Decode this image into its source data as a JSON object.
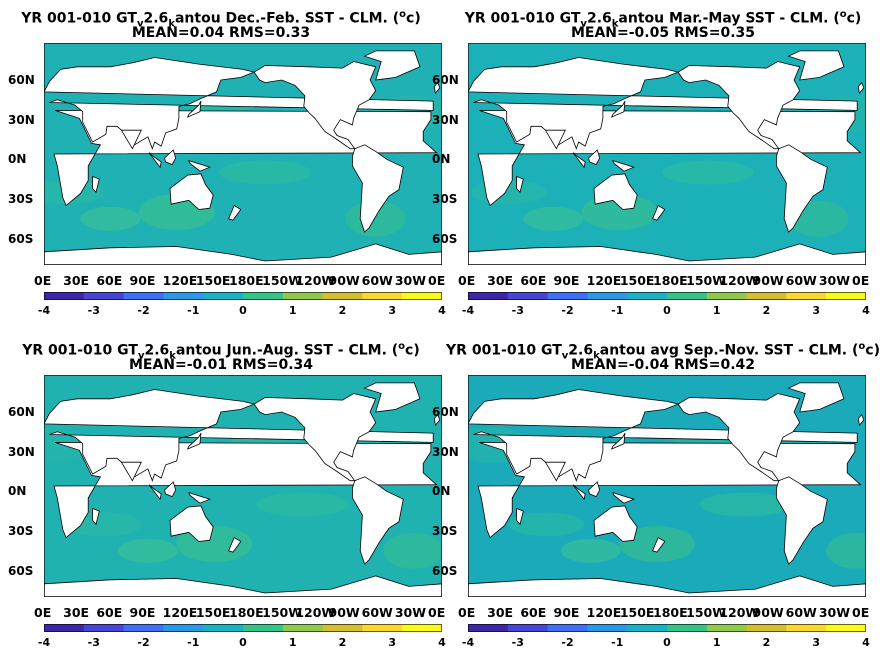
{
  "colorbar": {
    "range": [
      -4,
      4
    ],
    "ticks": [
      "-4",
      "-3",
      "-2",
      "-1",
      "0",
      "1",
      "2",
      "3",
      "4"
    ],
    "colors": [
      "#3e26a8",
      "#4745d4",
      "#3f6ff5",
      "#2c99e6",
      "#16b3c6",
      "#35c387",
      "#8ec94b",
      "#d6bf2e",
      "#fbd92c",
      "#f9fb15"
    ]
  },
  "lat_labels": [
    "60N",
    "30N",
    "0N",
    "30S",
    "60S"
  ],
  "lon_labels": [
    "0E",
    "30E",
    "60E",
    "90E",
    "120E",
    "150E",
    "180E",
    "150W",
    "120W",
    "90W",
    "60W",
    "30W",
    "0E"
  ],
  "panels": [
    {
      "title_pre": "YR 001-010 GT",
      "sub1": "v",
      "mid": "2.6",
      "sub2": "k",
      "title_post": "antou  Dec.-Feb. SST - CLM. (",
      "sup": "o",
      "title_end": "c)",
      "stats": "MEAN=0.04   RMS=0.33",
      "base_color": "#1fb1b3"
    },
    {
      "title_pre": "YR 001-010 GT",
      "sub1": "v",
      "mid": "2.6",
      "sub2": "k",
      "title_post": "antou Mar.-May SST - CLM. (",
      "sup": "o",
      "title_end": "c)",
      "stats": "MEAN=-0.05   RMS=0.35",
      "base_color": "#1cb0b8"
    },
    {
      "title_pre": "YR 001-010 GT",
      "sub1": "v",
      "mid": "2.6",
      "sub2": "k",
      "title_post": "antou Jun.-Aug. SST - CLM. (",
      "sup": "o",
      "title_end": "c)",
      "stats": "MEAN=-0.01   RMS=0.34",
      "base_color": "#20b2b1"
    },
    {
      "title_pre": "YR 001-010 GT",
      "sub1": "v",
      "mid": "2.6",
      "sub2": "k",
      "title_post": "antou avg Sep.-Nov. SST - CLM. (",
      "sup": "o",
      "title_end": "c)",
      "stats": "MEAN=-0.04   RMS=0.42",
      "base_color": "#1aaab9"
    }
  ]
}
